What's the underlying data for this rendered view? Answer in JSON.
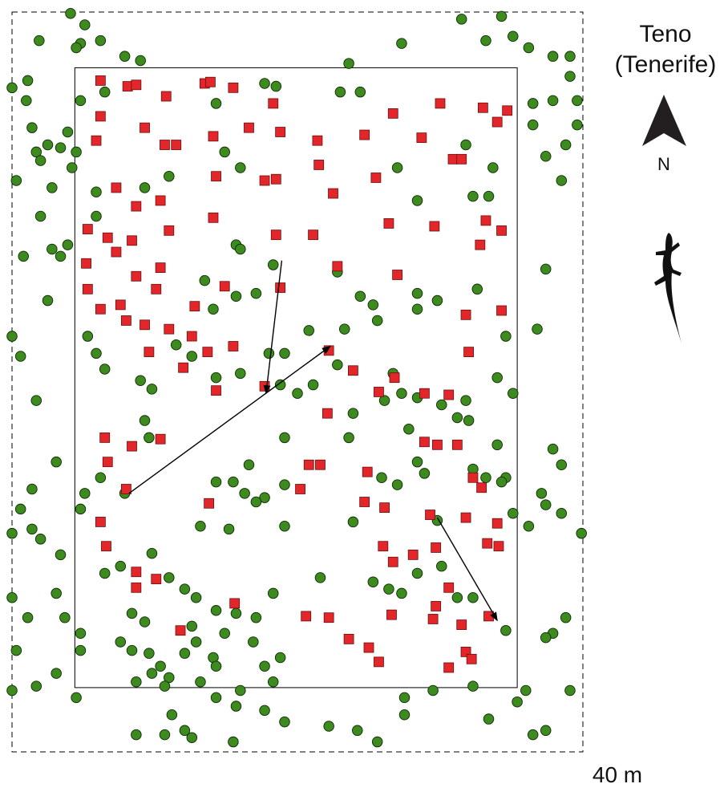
{
  "chart_data": {
    "type": "scatter",
    "title": "Teno",
    "subtitle": "(Tenerife)",
    "north_label": "N",
    "scale_label": "40 m",
    "xlim": [
      0,
      40
    ],
    "ylim": [
      0,
      51.8
    ],
    "study_plot": {
      "xlim": [
        4.4,
        35.4
      ],
      "ylim": [
        4.5,
        47.9
      ]
    },
    "series": [
      {
        "color": "#3d8a1e",
        "marker": "circle",
        "x": [
          4.1,
          1.9,
          5.1,
          6.2,
          7.9,
          9.0,
          4.8,
          0.0,
          1.1,
          1.0,
          1.4,
          2.5,
          1.7,
          2.0,
          0.3,
          2.8,
          3.4,
          3.9,
          4.5,
          4.2,
          4.5,
          31.5,
          33.2,
          34.3,
          35.1,
          36.2,
          37.9,
          39.1,
          27.3,
          23.6,
          36.5,
          37.9,
          39.6,
          39.1,
          38.8,
          37.4,
          38.5,
          36.5,
          39.6,
          2.0,
          0.8,
          2.8,
          3.4,
          3.9,
          2.5,
          0.0,
          0.6,
          1.7,
          3.1,
          1.4,
          0.6,
          1.4,
          0.0,
          2.0,
          3.4,
          0.0,
          1.1,
          3.1,
          3.7,
          4.8,
          4.8,
          0.3,
          0.0,
          1.7,
          3.1,
          4.5,
          7.6,
          8.4,
          9.6,
          10.4,
          11.0,
          9.8,
          8.7,
          10.7,
          12.1,
          12.9,
          12.6,
          14.3,
          15.7,
          17.1,
          14.9,
          16.9,
          17.7,
          18.8,
          18.3,
          16.0,
          14.3,
          15.7,
          11.2,
          12.1,
          8.7,
          10.7,
          12.6,
          15.5,
          17.7,
          19.1,
          22.2,
          24.2,
          25.6,
          27.5,
          27.5,
          29.5,
          32.3,
          33.4,
          36.0,
          35.4,
          36.5,
          37.4,
          39.1,
          37.9,
          37.4,
          34.6,
          38.8,
          37.9,
          38.5,
          37.1,
          37.4,
          38.5,
          39.9,
          36.2,
          35.1,
          34.6,
          34.3,
          34.0,
          35.1,
          34.0,
          34.6,
          36.8,
          37.4,
          4.8,
          6.5,
          14.3,
          17.7,
          18.5,
          23.0,
          24.4,
          31.8,
          32.3,
          33.4,
          33.7,
          27.0,
          28.4,
          5.9,
          5.9,
          9.3,
          11.0,
          14.9,
          16.0,
          15.7,
          16.0,
          13.5,
          14.1,
          15.7,
          17.1,
          18.3,
          22.8,
          24.4,
          25.3,
          28.4,
          29.8,
          28.4,
          32.6,
          18.0,
          19.1,
          20.8,
          23.3,
          25.6,
          5.3,
          5.9,
          6.5,
          9.0,
          9.8,
          11.5,
          12.6,
          14.3,
          16.0,
          18.8,
          20.0,
          21.1,
          19.1,
          23.6,
          23.9,
          26.1,
          26.7,
          27.3,
          28.4,
          30.1,
          31.2,
          31.8,
          32.0,
          27.8,
          28.4,
          28.9,
          27.0,
          14.3,
          15.5,
          16.6,
          17.7,
          19.1,
          17.1,
          16.3,
          13.2,
          15.2,
          19.1,
          23.9,
          9.3,
          9.6,
          7.9,
          6.2,
          5.1,
          4.8,
          6.5,
          7.6,
          9.8,
          11.0,
          8.4,
          9.3,
          12.1,
          12.9,
          18.3,
          21.6,
          25.3,
          26.4,
          27.3,
          28.4,
          30.1,
          31.2,
          32.3,
          29.8,
          32.3,
          33.2,
          14.1,
          13.2,
          14.3,
          22.8,
          25.9
        ],
        "values": [
          51.7,
          49.8,
          50.9,
          49.8,
          48.7,
          48.4,
          49.6,
          46.5,
          47.0,
          45.6,
          43.7,
          42.5,
          42.0,
          41.4,
          40.0,
          39.5,
          42.3,
          43.4,
          42.0,
          40.9,
          49.3,
          51.3,
          49.8,
          51.5,
          50.1,
          49.3,
          48.7,
          48.7,
          49.6,
          48.2,
          45.4,
          45.6,
          45.6,
          47.3,
          42.5,
          41.7,
          40.0,
          43.9,
          43.9,
          37.5,
          34.7,
          35.2,
          34.7,
          35.5,
          31.6,
          29.1,
          27.7,
          24.6,
          20.3,
          18.4,
          17.0,
          15.6,
          15.3,
          14.9,
          13.8,
          10.8,
          9.4,
          11.1,
          9.4,
          8.3,
          7.1,
          7.1,
          4.3,
          4.6,
          5.5,
          3.8,
          7.7,
          7.1,
          6.9,
          6.0,
          5.2,
          5.5,
          4.9,
          4.6,
          6.9,
          7.7,
          8.8,
          9.9,
          9.7,
          9.4,
          8.3,
          7.7,
          6.0,
          6.6,
          4.9,
          4.3,
          3.8,
          3.2,
          2.6,
          1.5,
          1.2,
          1.2,
          1.0,
          0.7,
          2.9,
          2.1,
          1.8,
          1.5,
          0.7,
          2.6,
          3.8,
          4.3,
          4.6,
          2.3,
          4.3,
          3.5,
          1.2,
          1.5,
          4.3,
          8.3,
          8.0,
          8.5,
          9.4,
          21.2,
          20.1,
          18.1,
          17.3,
          16.7,
          15.3,
          15.8,
          16.7,
          19.2,
          18.9,
          21.5,
          25.1,
          26.2,
          29.1,
          29.6,
          33.8,
          45.6,
          46.2,
          45.4,
          46.8,
          46.6,
          46.2,
          46.2,
          42.5,
          38.9,
          38.9,
          40.9,
          40.9,
          38.6,
          39.2,
          37.5,
          39.5,
          40.3,
          42.0,
          40.9,
          35.5,
          35.2,
          33.0,
          31.0,
          31.9,
          32.1,
          34.1,
          33.6,
          31.9,
          31.3,
          32.1,
          31.6,
          31.0,
          32.4,
          27.9,
          27.9,
          29.5,
          29.6,
          30.2,
          29.1,
          27.9,
          26.8,
          26.0,
          25.4,
          28.5,
          27.7,
          26.2,
          26.5,
          25.7,
          25.1,
          25.7,
          22.0,
          22.0,
          23.7,
          24.6,
          26.5,
          25.1,
          24.8,
          24.3,
          23.4,
          24.6,
          23.2,
          22.6,
          20.3,
          19.5,
          18.7,
          18.9,
          18.9,
          20.1,
          17.8,
          18.7,
          17.5,
          18.1,
          15.8,
          15.6,
          15.8,
          16.1,
          23.2,
          22.0,
          18.1,
          19.2,
          18.1,
          17.0,
          12.5,
          13.0,
          13.9,
          12.2,
          9.7,
          9.1,
          11.4,
          10.8,
          11.1,
          12.2,
          11.9,
          11.4,
          11.1,
          12.5,
          13.0,
          10.8,
          10.8,
          16.2,
          19.8,
          19.2,
          6.6,
          4.9,
          6.0,
          27.1,
          19.2
        ]
      },
      {
        "color": "#e2262a",
        "marker": "square",
        "x": [
          6.2,
          8.1,
          8.7,
          10.8,
          13.5,
          13.9,
          15.5,
          18.3,
          6.2,
          5.9,
          9.3,
          10.7,
          11.5,
          14.1,
          16.6,
          18.8,
          21.4,
          24.7,
          26.7,
          30.0,
          33.0,
          34.7,
          34.0,
          28.7,
          30.9,
          31.5,
          14.3,
          17.7,
          18.5,
          21.5,
          22.5,
          25.5,
          7.3,
          8.7,
          10.4,
          5.3,
          6.7,
          8.4,
          11.0,
          14.1,
          18.5,
          21.1,
          26.4,
          29.6,
          33.2,
          34.3,
          32.8,
          5.2,
          7.3,
          8.7,
          10.4,
          5.3,
          6.2,
          7.6,
          10.1,
          12.8,
          14.9,
          18.8,
          22.8,
          27.0,
          31.8,
          34.3,
          8.0,
          9.3,
          11.0,
          12.6,
          9.6,
          12.0,
          13.7,
          15.5,
          17.7,
          14.3,
          22.2,
          23.9,
          25.7,
          26.8,
          28.9,
          30.6,
          32.0,
          6.5,
          8.4,
          10.4,
          6.7,
          21.6,
          20.8,
          24.9,
          26.1,
          24.7,
          20.2,
          13.8,
          8.0,
          31.8,
          32.9,
          34.0,
          33.3,
          34.1,
          29.3,
          29.7,
          28.1,
          26.0,
          26.7,
          8.7,
          10.1,
          8.7,
          15.6,
          20.6,
          22.2,
          23.6,
          25.0,
          26.6,
          29.7,
          29.5,
          30.6,
          31.5,
          33.4,
          31.8,
          30.6,
          25.7,
          32.2,
          11.8,
          6.2,
          6.6,
          22.1,
          28.9,
          29.8,
          31.2,
          32.3
        ],
        "values": [
          47.0,
          46.6,
          46.7,
          45.9,
          46.8,
          46.9,
          46.5,
          45.4,
          44.5,
          42.8,
          43.7,
          42.5,
          42.5,
          43.1,
          43.7,
          43.4,
          42.8,
          43.2,
          44.7,
          45.4,
          45.1,
          44.9,
          44.1,
          43.0,
          41.5,
          41.5,
          40.3,
          40.0,
          40.1,
          41.1,
          39.1,
          40.2,
          39.5,
          38.2,
          38.6,
          36.6,
          36.0,
          35.8,
          36.5,
          37.4,
          36.2,
          36.2,
          37.0,
          36.8,
          37.2,
          36.5,
          35.5,
          34.2,
          35.0,
          33.3,
          33.9,
          32.4,
          31.0,
          31.3,
          32.4,
          31.2,
          32.6,
          32.5,
          34.0,
          33.4,
          30.6,
          30.9,
          30.2,
          29.9,
          29.6,
          29.1,
          28.0,
          26.9,
          28.0,
          28.4,
          25.6,
          25.3,
          28.1,
          26.7,
          25.2,
          26.2,
          25.1,
          25.0,
          28.0,
          22.0,
          21.4,
          21.9,
          20.3,
          20.1,
          20.1,
          19.6,
          17.1,
          17.5,
          18.4,
          17.4,
          18.4,
          16.4,
          18.5,
          16.0,
          14.6,
          14.4,
          16.6,
          14.3,
          13.8,
          14.4,
          13.3,
          12.6,
          12.1,
          11.5,
          10.4,
          9.5,
          9.4,
          7.9,
          7.3,
          9.6,
          10.2,
          9.3,
          11.5,
          8.9,
          9.5,
          7.0,
          5.9,
          6.3,
          6.5,
          8.5,
          16.1,
          14.4,
          23.7,
          21.7,
          21.5,
          21.5,
          19.2
        ]
      }
    ],
    "arrows": [
      {
        "x": [
          18.9,
          17.8
        ],
        "y": [
          34.4,
          25.1
        ]
      },
      {
        "x": [
          8.2,
          22.3
        ],
        "y": [
          18.1,
          28.4
        ]
      },
      {
        "x": [
          29.8,
          34.0
        ],
        "y": [
          16.4,
          9.2
        ]
      }
    ]
  }
}
